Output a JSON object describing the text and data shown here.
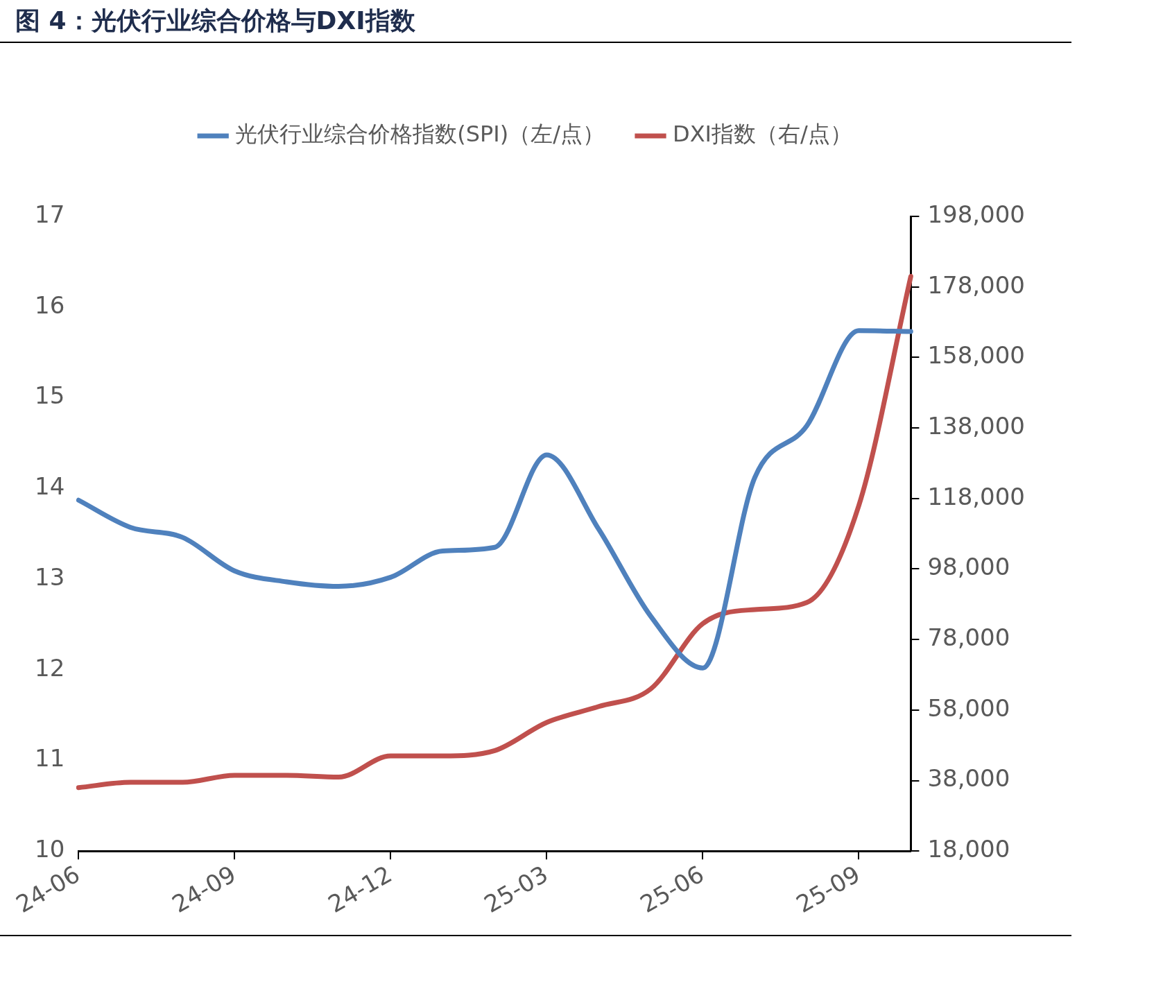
{
  "chart_data": {
    "type": "line",
    "title": "图  4：光伏行业综合价格与DXI指数",
    "categories": [
      "24-06",
      null,
      null,
      "24-09",
      null,
      null,
      "24-12",
      null,
      null,
      "25-03",
      null,
      null,
      "25-06",
      null,
      null,
      "25-09",
      null
    ],
    "series": [
      {
        "name": "光伏行业综合价格指数(SPI)（左/点）",
        "color": "#4f81bd",
        "values": [
          13.87,
          13.57,
          13.46,
          13.09,
          12.97,
          12.92,
          13.02,
          13.31,
          13.35,
          14.37,
          13.55,
          12.59,
          12.02,
          14.12,
          14.69,
          15.74,
          15.73
        ]
      },
      {
        "name": "DXI指数（右/点）",
        "color": "#c0504d",
        "axis": "y2",
        "values": [
          36000,
          37500,
          37500,
          39500,
          39500,
          39000,
          45000,
          45000,
          46500,
          54500,
          59000,
          64000,
          82500,
          86500,
          88500,
          116000,
          181000
        ]
      }
    ],
    "ylim": [
      10,
      17
    ],
    "yticks": [
      10,
      11,
      12,
      13,
      14,
      15,
      16,
      17
    ],
    "y2lim": [
      18000,
      198000
    ],
    "y2ticks": [
      {
        "value": 18000,
        "label": "18,000"
      },
      {
        "value": 38000,
        "label": "38,000"
      },
      {
        "value": 58000,
        "label": "58,000"
      },
      {
        "value": 78000,
        "label": "78,000"
      },
      {
        "value": 98000,
        "label": "98,000"
      },
      {
        "value": 118000,
        "label": "118,000"
      },
      {
        "value": 138000,
        "label": "138,000"
      },
      {
        "value": 158000,
        "label": "158,000"
      },
      {
        "value": 178000,
        "label": "178,000"
      },
      {
        "value": 198000,
        "label": "198,000"
      }
    ],
    "legend": "top",
    "grid": false,
    "marker": "none",
    "line_style": "solid"
  }
}
